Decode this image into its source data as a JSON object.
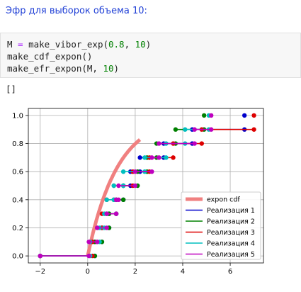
{
  "heading": "Эфр для выборок объема 10:",
  "code": {
    "line1": {
      "var": "M",
      "op": " = ",
      "fn": "make_vibor_exp",
      "p1": "(",
      "n1": "0.8",
      "comma": ", ",
      "n2": "10",
      "p2": ")"
    },
    "line2": {
      "fn": "make_cdf_expon",
      "p": "()"
    },
    "line3": {
      "fn": "make_efr_expon",
      "p1": "(",
      "arg": "M",
      "comma": ", ",
      "n": "10",
      "p2": ")"
    }
  },
  "output_text": "[]",
  "colors": {
    "heading": "#1f3fd6",
    "cdf": "#f08080",
    "r1": "#0000cc",
    "r2": "#008000",
    "r3": "#dd0000",
    "r4": "#00bfbf",
    "r5": "#bf00bf"
  },
  "chart_data": {
    "type": "line",
    "xlim": [
      -2.5,
      7.4
    ],
    "ylim": [
      -0.05,
      1.05
    ],
    "xticks": [
      -2,
      0,
      2,
      4,
      6
    ],
    "yticks": [
      0.0,
      0.2,
      0.4,
      0.6,
      0.8,
      1.0
    ],
    "xtick_labels": [
      "−2",
      "0",
      "2",
      "4",
      "6"
    ],
    "ytick_labels": [
      "0.0",
      "0.2",
      "0.4",
      "0.6",
      "0.8",
      "1.0"
    ],
    "grid": true,
    "legend_position": "lower-right",
    "cdf": {
      "name": "expon cdf",
      "rate": 0.8,
      "x_max": 2.2
    },
    "series": [
      {
        "name": "Реализация 1",
        "samples": [
          0.3,
          0.6,
          0.9,
          1.2,
          1.5,
          1.8,
          2.2,
          3.2,
          4.4,
          6.6
        ]
      },
      {
        "name": "Реализация 2",
        "samples": [
          0.3,
          0.6,
          0.9,
          1.2,
          1.5,
          2.1,
          2.5,
          2.9,
          3.7,
          4.9
        ]
      },
      {
        "name": "Реализация 3",
        "samples": [
          0.2,
          0.4,
          0.6,
          0.8,
          1.1,
          1.9,
          2.6,
          3.6,
          4.8,
          7.0
        ]
      },
      {
        "name": "Реализация 4",
        "samples": [
          0.1,
          0.5,
          0.7,
          0.8,
          1.1,
          1.5,
          2.4,
          3.3,
          4.1,
          5.1
        ]
      },
      {
        "name": "Реализация 5",
        "samples": [
          0.05,
          0.4,
          0.8,
          1.2,
          1.3,
          2.0,
          2.7,
          3.0,
          4.5,
          5.2
        ]
      }
    ]
  }
}
